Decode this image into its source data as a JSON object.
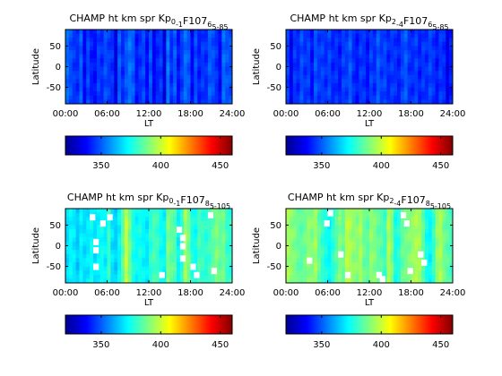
{
  "chart_data": [
    {
      "type": "heatmap",
      "title_parts": [
        "CHAMP ht km spr Kp",
        "0",
        "-1",
        "F",
        "107",
        "6",
        "5-85"
      ],
      "xlabel": "LT",
      "ylabel": "Latitude",
      "xlim": [
        0,
        24
      ],
      "ylim": [
        -90,
        90
      ],
      "x_ticks": [
        "00:00",
        "06:00",
        "12:00",
        "18:00",
        "24:00"
      ],
      "y_ticks": [
        -50,
        0,
        50
      ],
      "colorbar": {
        "range": [
          320,
          460
        ],
        "ticks": [
          350,
          400,
          450
        ],
        "colormap": "jet"
      },
      "column_values": [
        352,
        348,
        345,
        343,
        350,
        337,
        347,
        341,
        339,
        346,
        343,
        348,
        345,
        344,
        333,
        350,
        343,
        349,
        353,
        350,
        340,
        344,
        347,
        338,
        349,
        336,
        342,
        345,
        333,
        354,
        343,
        350,
        339,
        345,
        352,
        349,
        337,
        348,
        341,
        345,
        343,
        350,
        348,
        344,
        337,
        352,
        349,
        348
      ],
      "white_cells": []
    },
    {
      "type": "heatmap",
      "title_parts": [
        "CHAMP ht km spr Kp",
        "2",
        "-4",
        "F",
        "107",
        "6",
        "5-85"
      ],
      "xlabel": "LT",
      "ylabel": "Latitude",
      "xlim": [
        0,
        24
      ],
      "ylim": [
        -90,
        90
      ],
      "x_ticks": [
        "00:00",
        "06:00",
        "12:00",
        "18:00",
        "24:00"
      ],
      "y_ticks": [
        -50,
        0,
        50
      ],
      "colorbar": {
        "range": [
          320,
          460
        ],
        "ticks": [
          350,
          400,
          450
        ],
        "colormap": "jet"
      },
      "column_values": [
        346,
        335,
        345,
        342,
        348,
        344,
        346,
        339,
        349,
        345,
        346,
        343,
        347,
        342,
        344,
        340,
        346,
        345,
        350,
        343,
        340,
        345,
        344,
        339,
        346,
        343,
        350,
        345,
        347,
        342,
        345,
        344,
        341,
        346,
        350,
        344,
        343,
        346,
        341,
        345,
        343,
        347,
        344,
        340,
        345,
        343,
        335,
        341
      ],
      "white_cells": []
    },
    {
      "type": "heatmap",
      "title_parts": [
        "CHAMP ht km spr Kp",
        "0",
        "-1",
        "F",
        "107",
        "8",
        "5-105"
      ],
      "xlabel": "LT",
      "ylabel": "Latitude",
      "xlim": [
        0,
        24
      ],
      "ylim": [
        -90,
        90
      ],
      "x_ticks": [
        "00:00",
        "06:00",
        "12:00",
        "18:00",
        "24:00"
      ],
      "y_ticks": [
        -50,
        0,
        50
      ],
      "colorbar": {
        "range": [
          320,
          460
        ],
        "ticks": [
          350,
          400,
          450
        ],
        "colormap": "jet"
      },
      "column_values": [
        368,
        372,
        370,
        365,
        371,
        368,
        370,
        373,
        369,
        372,
        374,
        371,
        380,
        369,
        366,
        372,
        385,
        400,
        388,
        376,
        373,
        375,
        372,
        370,
        378,
        382,
        380,
        374,
        372,
        390,
        386,
        384,
        372,
        378,
        395,
        388,
        376,
        374,
        382,
        380,
        378,
        381,
        385,
        390,
        386,
        388,
        380,
        378
      ],
      "white_cells": [
        [
          7,
          70
        ],
        [
          8,
          10
        ],
        [
          8,
          -10
        ],
        [
          8,
          -50
        ],
        [
          10,
          55
        ],
        [
          12,
          70
        ],
        [
          27,
          -70
        ],
        [
          32,
          40
        ],
        [
          33,
          20
        ],
        [
          33,
          0
        ],
        [
          33,
          -30
        ],
        [
          36,
          -50
        ],
        [
          37,
          -70
        ],
        [
          41,
          75
        ],
        [
          42,
          -60
        ]
      ]
    },
    {
      "type": "heatmap",
      "title_parts": [
        "CHAMP ht km spr Kp",
        "2",
        "-4",
        "F",
        "107",
        "8",
        "5-105"
      ],
      "xlabel": "LT",
      "ylabel": "Latitude",
      "xlim": [
        0,
        24
      ],
      "ylim": [
        -90,
        90
      ],
      "x_ticks": [
        "00:00",
        "06:00",
        "12:00",
        "18:00",
        "24:00"
      ],
      "y_ticks": [
        -50,
        0,
        50
      ],
      "colorbar": {
        "range": [
          320,
          460
        ],
        "ticks": [
          350,
          400,
          450
        ],
        "colormap": "jet"
      },
      "column_values": [
        395,
        392,
        390,
        386,
        385,
        388,
        392,
        390,
        394,
        386,
        380,
        375,
        372,
        378,
        384,
        390,
        386,
        398,
        396,
        392,
        391,
        395,
        387,
        385,
        392,
        390,
        386,
        384,
        380,
        396,
        390,
        375,
        378,
        386,
        388,
        390,
        393,
        396,
        394,
        386,
        375,
        372,
        380,
        392,
        396,
        388,
        385,
        382
      ],
      "white_cells": [
        [
          6,
          -35
        ],
        [
          11,
          55
        ],
        [
          12,
          80
        ],
        [
          15,
          -20
        ],
        [
          17,
          -70
        ],
        [
          26,
          -70
        ],
        [
          27,
          -80
        ],
        [
          33,
          75
        ],
        [
          34,
          55
        ],
        [
          35,
          -60
        ],
        [
          38,
          -20
        ],
        [
          39,
          -40
        ]
      ]
    }
  ]
}
